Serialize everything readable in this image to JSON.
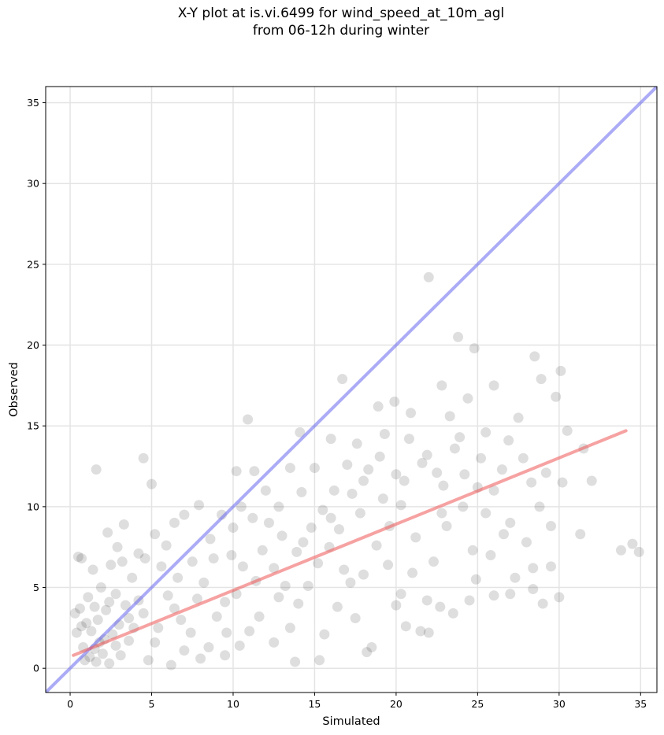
{
  "chart_data": {
    "type": "scatter",
    "title_line1": "X-Y plot at is.vi.6499 for wind_speed_at_10m_agl",
    "title_line2": "from 06-12h during winter",
    "xlabel": "Simulated",
    "ylabel": "Observed",
    "xlim": [
      -1.5,
      36
    ],
    "ylim": [
      -1.5,
      36
    ],
    "xticks": [
      0,
      5,
      10,
      15,
      20,
      25,
      30,
      35
    ],
    "yticks": [
      0,
      5,
      10,
      15,
      20,
      25,
      30,
      35
    ],
    "grid": true,
    "colors": {
      "points": "#000000",
      "identity_line": "#6666ee",
      "fit_line": "#ee5555"
    },
    "identity_line": {
      "x": [
        -1.5,
        36
      ],
      "y": [
        -1.5,
        36
      ]
    },
    "fit_line": {
      "x": [
        0.2,
        34.1
      ],
      "y": [
        0.8,
        14.7
      ]
    },
    "points": [
      [
        0.5,
        6.9
      ],
      [
        0.7,
        6.8
      ],
      [
        1.6,
        12.3
      ],
      [
        4.5,
        13.0
      ],
      [
        5.0,
        11.4
      ],
      [
        2.3,
        8.4
      ],
      [
        3.3,
        8.9
      ],
      [
        10.9,
        15.4
      ],
      [
        14.1,
        14.6
      ],
      [
        16.7,
        17.9
      ],
      [
        22.0,
        24.2
      ],
      [
        23.8,
        20.5
      ],
      [
        24.8,
        19.8
      ],
      [
        28.5,
        19.3
      ],
      [
        28.9,
        17.9
      ],
      [
        30.1,
        18.4
      ],
      [
        22.8,
        17.5
      ],
      [
        24.4,
        16.7
      ],
      [
        20.9,
        15.8
      ],
      [
        26.0,
        17.5
      ],
      [
        27.5,
        15.5
      ],
      [
        29.8,
        16.8
      ],
      [
        30.5,
        14.7
      ],
      [
        31.5,
        13.6
      ],
      [
        32.0,
        11.6
      ],
      [
        31.3,
        8.3
      ],
      [
        33.8,
        7.3
      ],
      [
        34.5,
        7.7
      ],
      [
        34.9,
        7.2
      ],
      [
        29.5,
        8.8
      ],
      [
        29.0,
        4.0
      ],
      [
        30.0,
        4.4
      ],
      [
        26.0,
        4.5
      ],
      [
        27.0,
        4.6
      ],
      [
        24.5,
        4.2
      ],
      [
        23.5,
        3.4
      ],
      [
        22.0,
        2.2
      ],
      [
        21.5,
        2.3
      ],
      [
        20.6,
        2.6
      ],
      [
        18.5,
        1.3
      ],
      [
        18.2,
        1.0
      ],
      [
        15.3,
        0.5
      ],
      [
        13.8,
        0.4
      ],
      [
        25.5,
        14.6
      ],
      [
        26.5,
        12.3
      ],
      [
        27.8,
        13.0
      ],
      [
        28.3,
        11.5
      ],
      [
        28.8,
        10.0
      ],
      [
        30.2,
        11.5
      ],
      [
        26.0,
        11.0
      ],
      [
        25.5,
        9.6
      ],
      [
        27.0,
        9.0
      ],
      [
        28.4,
        6.2
      ],
      [
        29.5,
        6.3
      ],
      [
        28.4,
        4.9
      ],
      [
        19.3,
        14.5
      ],
      [
        18.9,
        16.2
      ],
      [
        20.8,
        14.2
      ],
      [
        21.9,
        13.2
      ],
      [
        22.5,
        12.1
      ],
      [
        23.3,
        15.6
      ],
      [
        19.9,
        16.5
      ],
      [
        20.3,
        10.1
      ],
      [
        21.2,
        8.1
      ],
      [
        22.8,
        9.6
      ],
      [
        23.1,
        8.8
      ],
      [
        24.1,
        10.0
      ],
      [
        24.7,
        7.3
      ],
      [
        25.8,
        7.0
      ],
      [
        21.0,
        5.9
      ],
      [
        21.9,
        4.2
      ],
      [
        22.7,
        3.8
      ],
      [
        20.0,
        3.9
      ],
      [
        19.5,
        6.4
      ],
      [
        18.0,
        5.8
      ],
      [
        17.2,
        5.3
      ],
      [
        16.4,
        3.8
      ],
      [
        16.8,
        6.1
      ],
      [
        15.9,
        7.5
      ],
      [
        15.5,
        9.8
      ],
      [
        16.2,
        11.0
      ],
      [
        17.0,
        12.6
      ],
      [
        18.0,
        11.6
      ],
      [
        17.6,
        13.9
      ],
      [
        16.0,
        14.2
      ],
      [
        15.0,
        12.4
      ],
      [
        14.2,
        10.9
      ],
      [
        13.5,
        12.4
      ],
      [
        12.8,
        10.0
      ],
      [
        12.2,
        9.0
      ],
      [
        11.8,
        7.3
      ],
      [
        12.5,
        6.2
      ],
      [
        13.2,
        5.1
      ],
      [
        14.0,
        4.0
      ],
      [
        14.6,
        5.1
      ],
      [
        13.5,
        2.5
      ],
      [
        12.5,
        1.6
      ],
      [
        11.0,
        2.3
      ],
      [
        11.3,
        12.2
      ],
      [
        10.2,
        12.2
      ],
      [
        10.5,
        10.0
      ],
      [
        9.3,
        9.5
      ],
      [
        8.6,
        8.0
      ],
      [
        9.9,
        7.0
      ],
      [
        10.6,
        6.3
      ],
      [
        11.4,
        5.4
      ],
      [
        9.5,
        4.1
      ],
      [
        8.2,
        5.3
      ],
      [
        7.5,
        6.6
      ],
      [
        7.0,
        9.5
      ],
      [
        7.9,
        10.1
      ],
      [
        6.4,
        9.0
      ],
      [
        5.9,
        7.6
      ],
      [
        5.2,
        8.3
      ],
      [
        4.6,
        6.8
      ],
      [
        4.2,
        7.1
      ],
      [
        3.8,
        5.6
      ],
      [
        3.2,
        6.6
      ],
      [
        2.5,
        6.4
      ],
      [
        1.4,
        6.1
      ],
      [
        2.9,
        7.5
      ],
      [
        6.0,
        4.5
      ],
      [
        6.8,
        3.0
      ],
      [
        7.4,
        2.2
      ],
      [
        8.5,
        1.3
      ],
      [
        9.5,
        0.8
      ],
      [
        10.4,
        1.4
      ],
      [
        5.2,
        1.6
      ],
      [
        4.8,
        0.5
      ],
      [
        6.2,
        0.2
      ],
      [
        3.9,
        2.5
      ],
      [
        4.5,
        3.4
      ],
      [
        3.4,
        3.9
      ],
      [
        2.8,
        4.6
      ],
      [
        1.9,
        5.0
      ],
      [
        1.1,
        4.4
      ],
      [
        0.6,
        3.7
      ],
      [
        0.3,
        3.4
      ],
      [
        0.4,
        2.2
      ],
      [
        0.8,
        1.3
      ],
      [
        1.2,
        0.7
      ],
      [
        1.6,
        0.4
      ],
      [
        2.0,
        0.9
      ],
      [
        2.4,
        0.3
      ],
      [
        2.8,
        1.4
      ],
      [
        3.1,
        0.8
      ],
      [
        3.6,
        1.7
      ],
      [
        1.3,
        2.3
      ],
      [
        1.7,
        3.0
      ],
      [
        2.2,
        3.6
      ],
      [
        1.0,
        2.8
      ],
      [
        1.8,
        1.6
      ],
      [
        2.6,
        2.1
      ],
      [
        0.9,
        0.5
      ],
      [
        1.5,
        1.2
      ],
      [
        2.1,
        1.8
      ],
      [
        3.0,
        2.7
      ],
      [
        16.5,
        8.6
      ],
      [
        17.8,
        9.6
      ],
      [
        18.8,
        7.6
      ],
      [
        19.6,
        8.8
      ],
      [
        20.5,
        11.6
      ],
      [
        21.6,
        12.7
      ],
      [
        22.9,
        11.3
      ],
      [
        23.6,
        13.6
      ],
      [
        24.2,
        12.0
      ],
      [
        25.0,
        11.2
      ],
      [
        18.3,
        12.3
      ],
      [
        19.0,
        13.1
      ],
      [
        14.8,
        8.7
      ],
      [
        13.9,
        7.2
      ],
      [
        13.0,
        8.2
      ],
      [
        12.0,
        11.0
      ],
      [
        11.2,
        9.3
      ],
      [
        10.0,
        8.7
      ],
      [
        8.8,
        6.8
      ],
      [
        9.0,
        3.2
      ],
      [
        7.8,
        4.3
      ],
      [
        6.6,
        5.6
      ],
      [
        5.6,
        6.3
      ],
      [
        15.6,
        2.1
      ],
      [
        17.5,
        3.1
      ],
      [
        20.3,
        4.6
      ],
      [
        22.3,
        6.6
      ],
      [
        24.9,
        5.5
      ],
      [
        26.6,
        8.3
      ],
      [
        27.3,
        5.6
      ],
      [
        28.0,
        7.8
      ],
      [
        29.2,
        12.1
      ],
      [
        26.9,
        14.1
      ],
      [
        25.2,
        13.0
      ],
      [
        23.9,
        14.3
      ],
      [
        20.0,
        12.0
      ],
      [
        19.2,
        10.5
      ],
      [
        17.3,
        10.8
      ],
      [
        16.0,
        9.3
      ],
      [
        15.2,
        6.5
      ],
      [
        14.3,
        7.8
      ],
      [
        12.8,
        4.4
      ],
      [
        11.6,
        3.2
      ],
      [
        10.2,
        4.6
      ],
      [
        9.6,
        2.2
      ],
      [
        8.0,
        0.6
      ],
      [
        7.0,
        1.1
      ],
      [
        6.4,
        3.7
      ],
      [
        5.4,
        2.5
      ],
      [
        4.2,
        4.2
      ],
      [
        3.6,
        3.1
      ],
      [
        2.4,
        4.1
      ],
      [
        1.5,
        3.8
      ],
      [
        0.7,
        2.6
      ]
    ]
  }
}
